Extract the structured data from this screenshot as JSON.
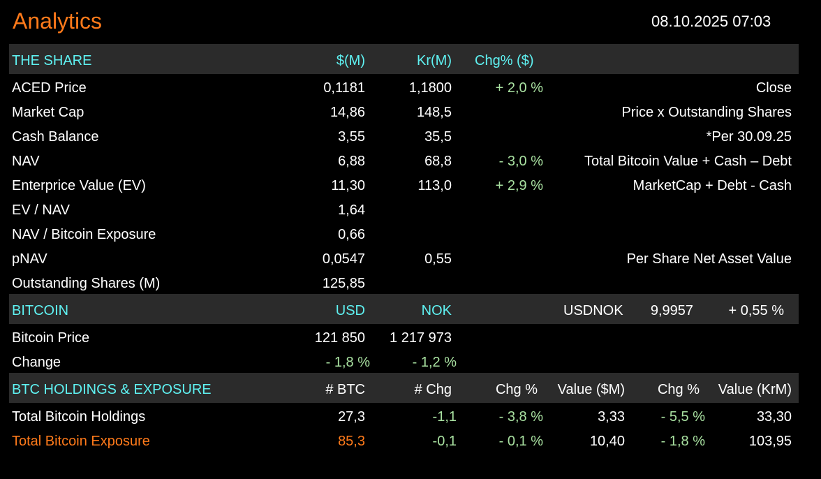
{
  "header": {
    "title": "Analytics",
    "datetime": "08.10.2025 07:03"
  },
  "share": {
    "headers": {
      "label": "THE SHARE",
      "usd": "$(M)",
      "kr": "Kr(M)",
      "chg": "Chg% ($)"
    },
    "rows": [
      {
        "label": "ACED Price",
        "usd": "0,1181",
        "kr": "1,1800",
        "chg": "+ 2,0 %",
        "note": "Close"
      },
      {
        "label": "Market Cap",
        "usd": "14,86",
        "kr": "148,5",
        "chg": "",
        "note": "Price x Outstanding Shares"
      },
      {
        "label": "Cash Balance",
        "usd": "3,55",
        "kr": "35,5",
        "chg": "",
        "note": "*Per 30.09.25"
      },
      {
        "label": "NAV",
        "usd": "6,88",
        "kr": "68,8",
        "chg": "- 3,0 %",
        "note": "Total Bitcoin Value + Cash – Debt"
      },
      {
        "label": "Enterprice Value (EV)",
        "usd": "11,30",
        "kr": "113,0",
        "chg": "+ 2,9 %",
        "note": "MarketCap + Debt - Cash"
      },
      {
        "label": "EV / NAV",
        "usd": "1,64",
        "kr": "",
        "chg": "",
        "note": ""
      },
      {
        "label": "NAV / Bitcoin Exposure",
        "usd": "0,66",
        "kr": "",
        "chg": "",
        "note": ""
      },
      {
        "label": "pNAV",
        "usd": "0,0547",
        "kr": "0,55",
        "chg": "",
        "note": "Per Share Net Asset Value"
      },
      {
        "label": "Outstanding Shares (M)",
        "usd": "125,85",
        "kr": "",
        "chg": "",
        "note": ""
      }
    ]
  },
  "bitcoin": {
    "headers": {
      "label": "BITCOIN",
      "usd": "USD",
      "nok": "NOK",
      "usdnok_label": "USDNOK",
      "usdnok_value": "9,9957",
      "usdnok_change": "+ 0,55 %"
    },
    "price": {
      "label": "Bitcoin Price",
      "usd": "121 850",
      "nok": "1 217 973"
    },
    "change": {
      "label": "Change",
      "usd": "- 1,8 %",
      "nok": "- 1,2 %"
    }
  },
  "holdings": {
    "headers": {
      "label": "BTC HOLDINGS & EXPOSURE",
      "btc": "# BTC",
      "chg_btc": "# Chg",
      "chg_pct": "Chg %",
      "value_usd": "Value ($M)",
      "chg_pct2": "Chg %",
      "value_kr": "Value (KrM)"
    },
    "rows": [
      {
        "label": "Total Bitcoin Holdings",
        "btc": "27,3",
        "chg_btc": "-1,1",
        "chg_pct": "- 3,8 %",
        "value_usd": "3,33",
        "chg_pct2": "- 5,5 %",
        "value_kr": "33,30"
      },
      {
        "label": "Total Bitcoin Exposure",
        "btc": "85,3",
        "chg_btc": "-0,1",
        "chg_pct": "- 0,1 %",
        "value_usd": "10,40",
        "chg_pct2": "- 1,8 %",
        "value_kr": "103,95"
      }
    ]
  },
  "colors": {
    "background": "#000000",
    "header_band": "#2b2b2b",
    "header_text": "#5ff2f2",
    "accent": "#ff7a1a",
    "change_text": "#a8e0a0",
    "body_text": "#ffffff"
  }
}
